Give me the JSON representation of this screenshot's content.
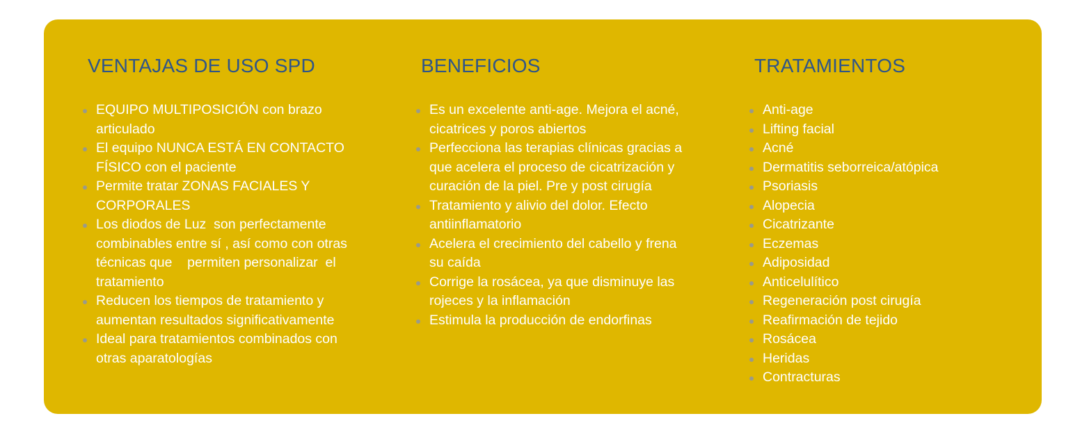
{
  "colors": {
    "background": "#DFB700",
    "heading": "#2F5589",
    "text": "#FFFFFF"
  },
  "columns": [
    {
      "title": "VENTAJAS DE USO SPD",
      "items": [
        "EQUIPO MULTIPOSICIÓN con brazo articulado",
        "El equipo NUNCA ESTÁ EN CONTACTO FÍSICO con el paciente",
        "Permite tratar ZONAS FACIALES Y CORPORALES",
        "Los diodos de Luz  son perfectamente combinables entre sí , así como con otras técnicas que    permiten personalizar  el tratamiento",
        "Reducen los tiempos de tratamiento y aumentan resultados significativamente",
        "Ideal para tratamientos combinados con otras aparatologías"
      ]
    },
    {
      "title": "BENEFICIOS",
      "items": [
        "Es un excelente anti-age. Mejora el acné, cicatrices y poros abiertos",
        "Perfecciona las terapias clínicas gracias a que acelera el proceso de cicatrización y curación de la piel. Pre y post cirugía",
        "Tratamiento y alivio del dolor. Efecto antiinflamatorio",
        "Acelera el crecimiento del cabello y frena su caída",
        "Corrige la rosácea, ya que disminuye las rojeces y la inflamación",
        "Estimula la producción de endorfinas"
      ]
    },
    {
      "title": "TRATAMIENTOS",
      "items": [
        "Anti-age",
        "Lifting facial",
        "Acné",
        "Dermatitis seborreica/atópica",
        "Psoriasis",
        "Alopecia",
        "Cicatrizante",
        "Eczemas",
        "Adiposidad",
        "Anticelulítico",
        "Regeneración post cirugía",
        "Reafirmación de tejido",
        "Rosácea",
        "Heridas",
        "Contracturas"
      ]
    }
  ]
}
